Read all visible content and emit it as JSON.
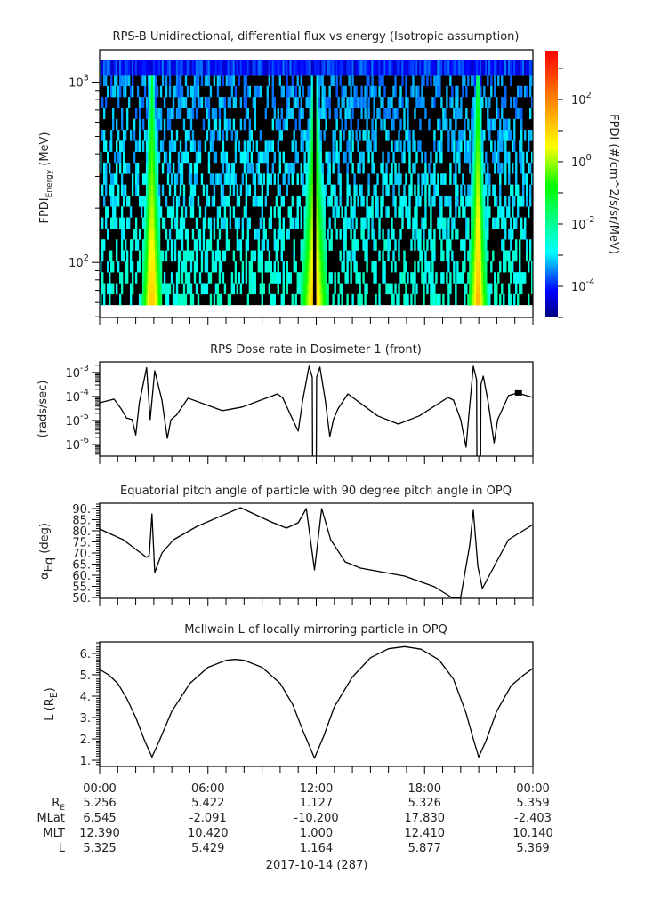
{
  "chart_data": [
    {
      "type": "heatmap",
      "title": "RPS-B  Unidirectional, differential flux vs energy (Isotropic assumption)",
      "ylabel": "FPDI",
      "ylabel_sub": "Energy",
      "ylabel_unit": " (MeV)",
      "yscale": "log",
      "ylim_log10": [
        1.695,
        3.18
      ],
      "xlim_hours": [
        0,
        24
      ],
      "yticks": [
        {
          "log10": 2,
          "base": "10",
          "exp": "2"
        },
        {
          "log10": 3,
          "base": "10",
          "exp": "3"
        }
      ],
      "energy_range_mev": [
        58,
        1096
      ],
      "n_energy_bins": 21,
      "top_channel_mev": [
        1096,
        1326
      ],
      "belt_crossings": [
        {
          "hour": 2.9,
          "width_scale": 1.0,
          "dip": 0.3
        },
        {
          "hour": 11.9,
          "width_scale": 1.35,
          "dip": 1.0
        },
        {
          "hour": 20.95,
          "width_scale": 0.95,
          "dip": 1.0
        }
      ],
      "colorbar": {
        "label": "FPDI (#/cm^2/s/sr/MeV)",
        "range_log10": [
          -5,
          3.57
        ],
        "ticks": [
          {
            "log10": 2,
            "base": "10",
            "exp": "2"
          },
          {
            "log10": 0,
            "base": "10",
            "exp": "0"
          },
          {
            "log10": -2,
            "base": "10",
            "exp": "-2"
          },
          {
            "log10": -4,
            "base": "10",
            "exp": "-4"
          }
        ],
        "colors": [
          "#000080",
          "#0000ff",
          "#00ffff",
          "#00ff80",
          "#00ff00",
          "#ffff00",
          "#ff8000",
          "#ff0000"
        ]
      }
    },
    {
      "type": "line",
      "title": "RPS  Dose rate in Dosimeter 1 (front)",
      "ylabel": "(rads/sec)",
      "yscale": "log",
      "ylim_log10": [
        -6.48,
        -2.56
      ],
      "xlim_hours": [
        0,
        24
      ],
      "yticks": [
        {
          "log10": -3,
          "base": "10",
          "exp": "-3"
        },
        {
          "log10": -4,
          "base": "10",
          "exp": "-4"
        },
        {
          "log10": -5,
          "base": "10",
          "exp": "-5"
        },
        {
          "log10": -6,
          "base": "10",
          "exp": "-6"
        }
      ],
      "x_hours": [
        0,
        0.8,
        1.2,
        1.5,
        1.8,
        2.0,
        2.2,
        2.6,
        2.8,
        3.05,
        3.45,
        3.75,
        3.95,
        4.25,
        4.9,
        6.8,
        7.9,
        9.85,
        10.15,
        10.65,
        11.0,
        11.25,
        11.6,
        11.78,
        11.8,
        12.0,
        12.02,
        12.2,
        12.5,
        12.75,
        12.95,
        13.2,
        13.75,
        15.4,
        16.55,
        17.7,
        19.3,
        19.6,
        20.0,
        20.3,
        20.45,
        20.7,
        20.88,
        20.9,
        21.1,
        21.12,
        21.25,
        21.5,
        21.85,
        22.05,
        22.65,
        23.15,
        24
      ],
      "log10_y": [
        -4.26,
        -4.11,
        -4.52,
        -4.9,
        -4.96,
        -5.6,
        -4.26,
        -2.8,
        -4.96,
        -2.93,
        -4.15,
        -5.74,
        -4.96,
        -4.78,
        -4.07,
        -4.59,
        -4.44,
        -3.89,
        -4.07,
        -4.89,
        -5.44,
        -4.15,
        -2.74,
        -3.2,
        -7,
        -7,
        -3.2,
        -2.78,
        -4.15,
        -5.67,
        -4.96,
        -4.52,
        -3.89,
        -4.81,
        -5.15,
        -4.81,
        -4.04,
        -4.15,
        -4.96,
        -6.11,
        -4.78,
        -2.74,
        -3.3,
        -7,
        -7,
        -3.5,
        -3.15,
        -4.15,
        -5.93,
        -4.96,
        -3.96,
        -3.85,
        -4.04
      ],
      "marker": {
        "hour": 23.2,
        "log10_y": -3.85
      }
    },
    {
      "type": "line",
      "title": "Equatorial pitch angle of particle with 90 degree pitch angle in OPQ",
      "ylabel": "α",
      "ylabel_sub": "Eq",
      "ylabel_unit": " (deg)",
      "ylim": [
        49.6,
        92.4
      ],
      "xlim_hours": [
        0,
        24
      ],
      "yticks": [
        {
          "value": 90,
          "label": "90."
        },
        {
          "value": 85,
          "label": "85."
        },
        {
          "value": 80,
          "label": "80."
        },
        {
          "value": 75,
          "label": "75."
        },
        {
          "value": 70,
          "label": "70."
        },
        {
          "value": 65,
          "label": "65."
        },
        {
          "value": 60,
          "label": "60."
        },
        {
          "value": 55,
          "label": "55."
        },
        {
          "value": 50,
          "label": "50."
        }
      ],
      "x_hours": [
        0,
        1.3,
        2.6,
        2.75,
        2.9,
        3.0,
        3.05,
        3.45,
        4.1,
        5.4,
        7.8,
        9.5,
        10.35,
        11.0,
        11.45,
        11.9,
        12.3,
        12.8,
        13.6,
        14.45,
        16.9,
        18.55,
        19.5,
        20.0,
        20.5,
        20.7,
        20.95,
        21.2,
        21.85,
        22.65,
        24
      ],
      "y": [
        80.8,
        76,
        68,
        69,
        87.6,
        70,
        61.2,
        70,
        76,
        82,
        90.4,
        84,
        81.2,
        83.6,
        90,
        62.4,
        90,
        76,
        66,
        63.2,
        59.6,
        54.8,
        50,
        50,
        73.6,
        89.2,
        64,
        54,
        64,
        76,
        82.8
      ]
    },
    {
      "type": "line",
      "title": "McIlwain L of locally mirroring particle in OPQ",
      "ylabel": "L (R",
      "ylabel_sub": "E",
      "ylabel_unit": ")",
      "ylim": [
        0.71,
        6.54
      ],
      "xlim_hours": [
        0,
        24
      ],
      "yticks": [
        {
          "value": 6,
          "label": "6."
        },
        {
          "value": 5,
          "label": "5."
        },
        {
          "value": 4,
          "label": "4."
        },
        {
          "value": 3,
          "label": "3."
        },
        {
          "value": 2,
          "label": "2."
        },
        {
          "value": 1,
          "label": "1."
        }
      ],
      "x_hours": [
        0,
        0.5,
        1,
        1.5,
        2,
        2.5,
        2.9,
        3.3,
        4,
        5,
        6,
        7,
        7.5,
        8,
        9,
        10,
        10.7,
        11.3,
        11.9,
        12.4,
        13,
        14,
        15,
        16,
        16.9,
        17.8,
        18.8,
        19.6,
        20.3,
        20.7,
        21.0,
        21.4,
        22,
        22.8,
        23.5,
        24
      ],
      "y": [
        5.25,
        5.0,
        4.6,
        3.9,
        3.0,
        1.9,
        1.15,
        1.9,
        3.3,
        4.6,
        5.35,
        5.68,
        5.72,
        5.68,
        5.35,
        4.6,
        3.6,
        2.3,
        1.1,
        2.1,
        3.5,
        4.9,
        5.8,
        6.22,
        6.32,
        6.2,
        5.7,
        4.8,
        3.2,
        2.0,
        1.15,
        1.9,
        3.3,
        4.5,
        5.0,
        5.3
      ]
    }
  ],
  "ephemeris": {
    "times": [
      "00:00",
      "06:00",
      "12:00",
      "18:00",
      "00:00"
    ],
    "rows": [
      {
        "label": "R",
        "sub": "E",
        "values": [
          "5.256",
          "5.422",
          "1.127",
          "5.326",
          "5.359"
        ]
      },
      {
        "label": "MLat",
        "sub": "",
        "values": [
          "6.545",
          "-2.091",
          "-10.200",
          "17.830",
          "-2.403"
        ]
      },
      {
        "label": "MLT",
        "sub": "",
        "values": [
          "12.390",
          "10.420",
          "1.000",
          "12.410",
          "10.140"
        ]
      },
      {
        "label": "L",
        "sub": "",
        "values": [
          "5.325",
          "5.429",
          "1.164",
          "5.877",
          "5.369"
        ]
      }
    ],
    "date": "2017-10-14 (287)"
  }
}
